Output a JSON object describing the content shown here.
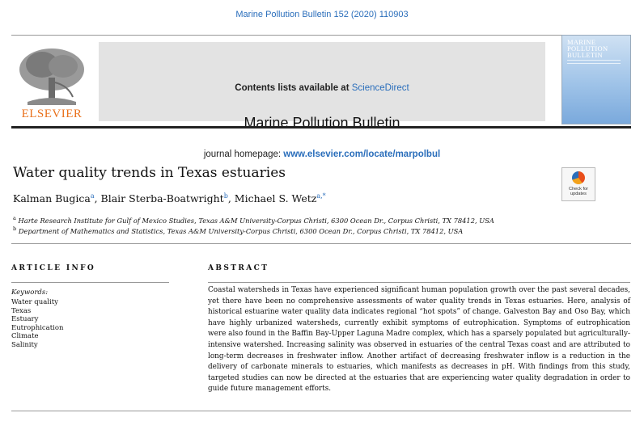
{
  "header": {
    "citation": "Marine Pollution Bulletin 152 (2020) 110903",
    "contents_prefix": "Contents lists available at",
    "contents_link": "ScienceDirect",
    "journal_name": "Marine Pollution Bulletin",
    "homepage_prefix": "journal homepage:",
    "homepage_url": "www.elsevier.com/locate/marpolbul",
    "publisher": "ELSEVIER",
    "cover_title": "MARINE POLLUTION BULLETIN"
  },
  "article": {
    "title": "Water quality trends in Texas estuaries",
    "authors": [
      {
        "name": "Kalman Bugica",
        "sup": "a"
      },
      {
        "name": "Blair Sterba-Boatwright",
        "sup": "b"
      },
      {
        "name": "Michael S. Wetz",
        "sup": "a,*"
      }
    ],
    "affiliations": [
      {
        "sup": "a",
        "text": "Harte Research Institute for Gulf of Mexico Studies, Texas A&M University-Corpus Christi, 6300 Ocean Dr., Corpus Christi, TX 78412, USA"
      },
      {
        "sup": "b",
        "text": "Department of Mathematics and Statistics, Texas A&M University-Corpus Christi, 6300 Ocean Dr., Corpus Christi, TX 78412, USA"
      }
    ],
    "check_updates": "Check for updates"
  },
  "article_info": {
    "heading": "ARTICLE INFO",
    "keywords_label": "Keywords:",
    "keywords": [
      "Water quality",
      "Texas",
      "Estuary",
      "Eutrophication",
      "Climate",
      "Salinity"
    ]
  },
  "abstract": {
    "heading": "ABSTRACT",
    "text": "Coastal watersheds in Texas have experienced significant human population growth over the past several decades, yet there have been no comprehensive assessments of water quality trends in Texas estuaries. Here, analysis of historical estuarine water quality data indicates regional “hot spots” of change. Galveston Bay and Oso Bay, which have highly urbanized watersheds, currently exhibit symptoms of eutrophication. Symptoms of eutrophication were also found in the Baffin Bay-Upper Laguna Madre complex, which has a sparsely populated but agriculturally-intensive watershed. Increasing salinity was observed in estuaries of the central Texas coast and are attributed to long-term decreases in freshwater inflow. Another artifact of decreasing freshwater inflow is a reduction in the delivery of carbonate minerals to estuaries, which manifests as decreases in pH. With findings from this study, targeted studies can now be directed at the estuaries that are experiencing water quality degradation in order to guide future management efforts."
  },
  "colors": {
    "link": "#2a6ebb",
    "publisher": "#e9711c",
    "banner": "#e3e3e3"
  },
  "icons": {
    "logo": "elsevier-tree-logo",
    "check": "check-for-updates-icon"
  }
}
